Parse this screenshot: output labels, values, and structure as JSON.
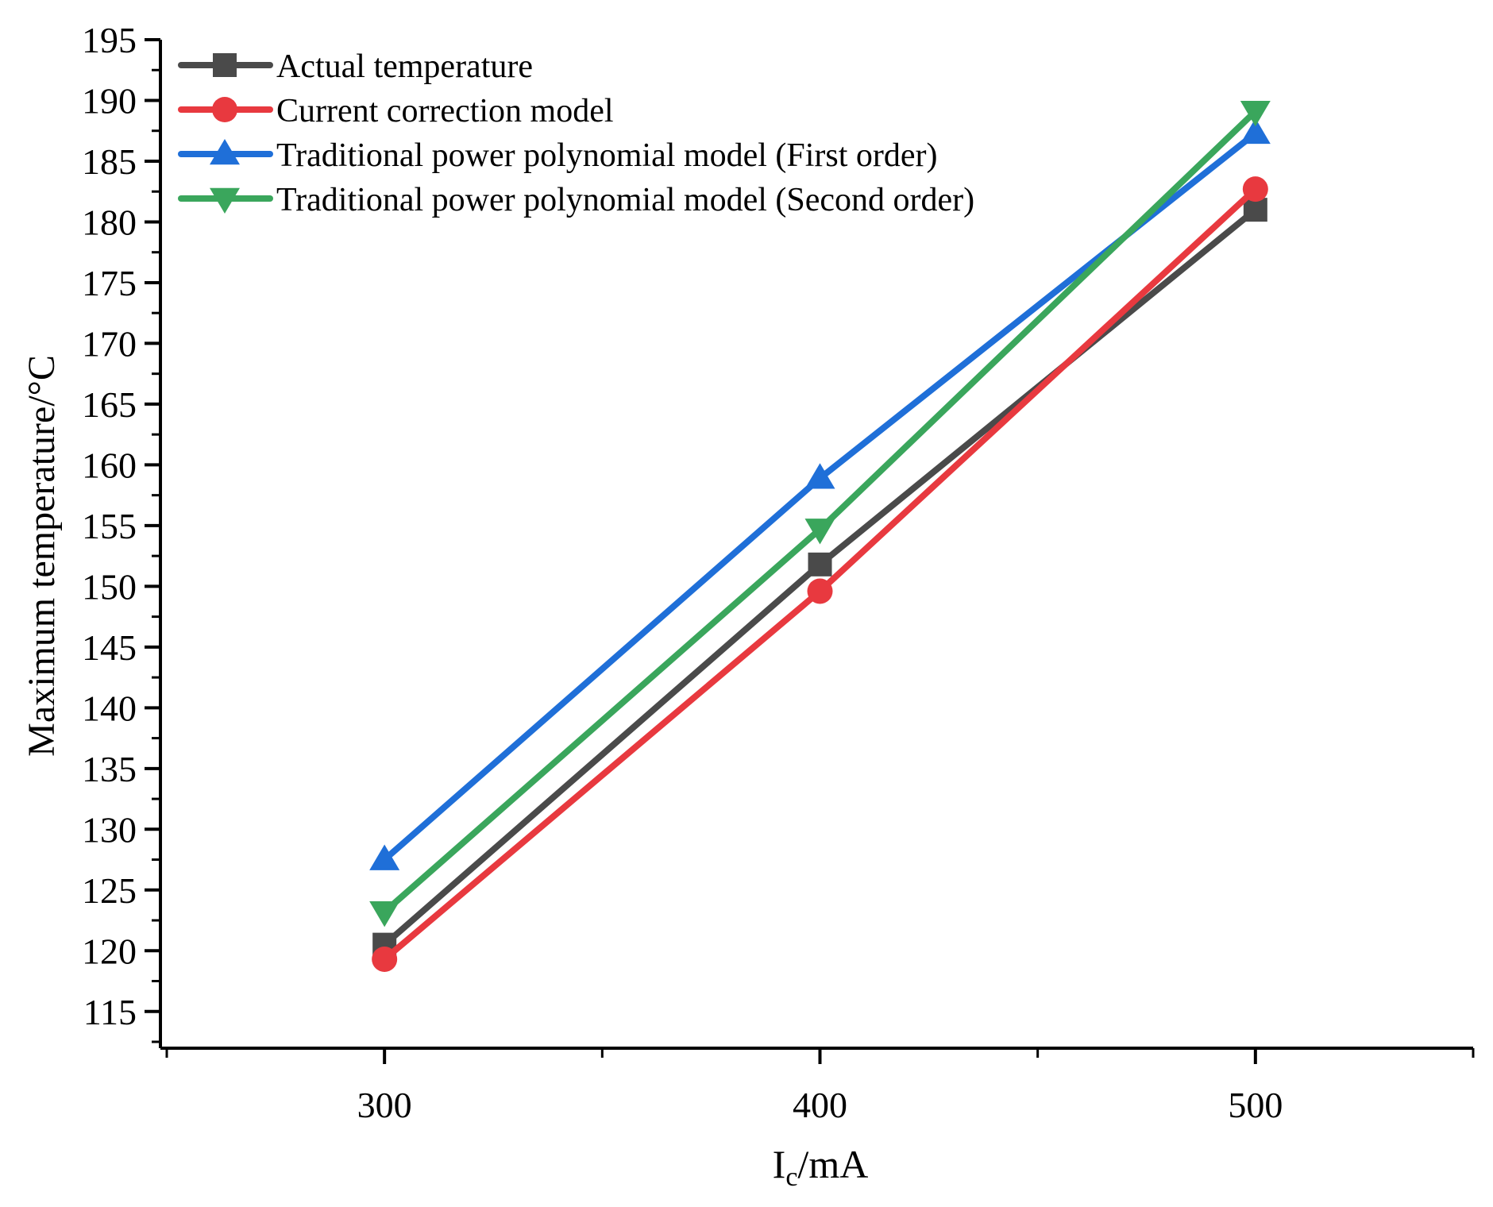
{
  "chart_data": {
    "type": "line",
    "title": "",
    "xlabel": "I",
    "xlabel_sub": "c",
    "xlabel_unit": "/mA",
    "ylabel": "Maximum temperature/°C",
    "x": [
      300,
      400,
      500
    ],
    "xlim": [
      250,
      550
    ],
    "ylim": [
      112.5,
      195
    ],
    "x_major_ticks": [
      300,
      400,
      500
    ],
    "x_minor_ticks": [
      250,
      350,
      450,
      550
    ],
    "y_major_ticks": [
      115,
      120,
      125,
      130,
      135,
      140,
      145,
      150,
      155,
      160,
      165,
      170,
      175,
      180,
      185,
      190,
      195
    ],
    "y_minor_step": 2.5,
    "grid": false,
    "legend_position": "top-left",
    "series": [
      {
        "name": "Actual temperature",
        "values": [
          120.5,
          151.8,
          181.0
        ],
        "color": "#4a4a4a",
        "marker": "square"
      },
      {
        "name": "Current correction model",
        "values": [
          119.3,
          149.6,
          182.7
        ],
        "color": "#e8393f",
        "marker": "circle"
      },
      {
        "name": "Traditional power polynomial model (First order)",
        "values": [
          127.5,
          158.9,
          187.3
        ],
        "color": "#1f6fd8",
        "marker": "triangle-up"
      },
      {
        "name": "Traditional power polynomial model (Second order)",
        "values": [
          123.2,
          154.7,
          189.1
        ],
        "color": "#3aa65c",
        "marker": "triangle-down"
      }
    ]
  }
}
